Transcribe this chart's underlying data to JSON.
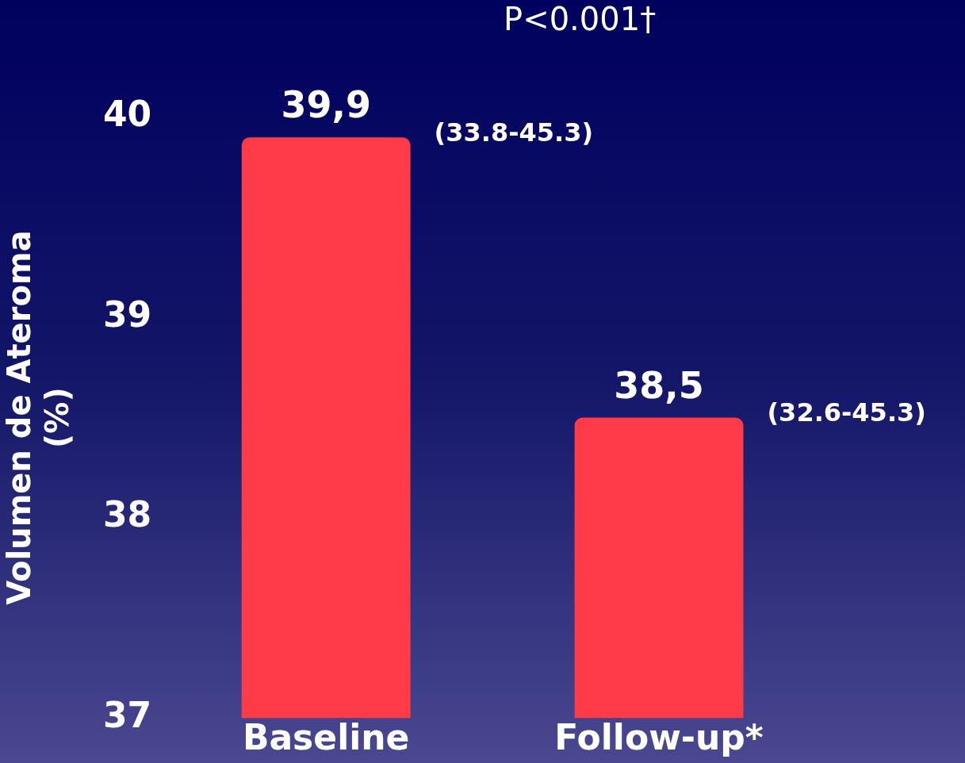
{
  "chart_data": {
    "type": "bar",
    "ylabel": "Volumen de Ateroma\n(%)",
    "categories": [
      "Baseline",
      "Follow-up*"
    ],
    "values": [
      39.9,
      38.5
    ],
    "value_labels": [
      "39,9",
      "38,5"
    ],
    "color": "#ff3b4a",
    "ylim": [
      37,
      40
    ],
    "yticks": [
      37,
      38,
      39,
      40
    ],
    "grid": false,
    "annotations": [
      "P<0.001†",
      "(33.8-45.3)",
      "(32.6-45.3)"
    ]
  }
}
